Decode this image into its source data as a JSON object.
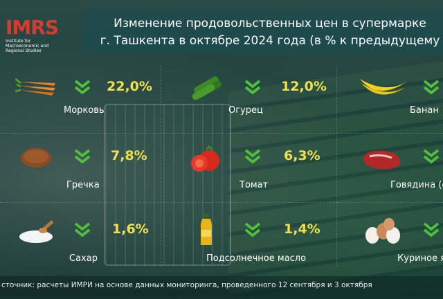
{
  "logo": {
    "mark": "IMRS",
    "sub": "Institute for Macroeconomic and Regional Studies"
  },
  "title_lines": [
    "Изменение продовольственных цен в супермарке",
    "г. Ташкента в октябре 2024 года (в % к предыдущему"
  ],
  "footer": "сточник: расчеты ИМРИ на основе данных мониторинга, проведенного 12 сентября и 3 октября",
  "colors": {
    "value": "#f0e14a",
    "arrow": "#4fbf3c",
    "logo": "#d83a2e",
    "title_bg": "#1e4b4e"
  },
  "chart_data": {
    "type": "table",
    "title": "Изменение продовольственных цен в супермаркетах г. Ташкента в октябре 2024 года (в % к предыдущему месяцу)",
    "direction": "decrease",
    "items": [
      {
        "name": "Морковь",
        "value_label": "22,0%",
        "value": 22.0,
        "icon": "carrot-icon"
      },
      {
        "name": "Огурец",
        "value_label": "12,0%",
        "value": 12.0,
        "icon": "cucumber-icon"
      },
      {
        "name": "Банан",
        "value_label": "",
        "value": null,
        "icon": "banana-icon"
      },
      {
        "name": "Гречка",
        "value_label": "7,8%",
        "value": 7.8,
        "icon": "buckwheat-icon"
      },
      {
        "name": "Томат",
        "value_label": "6,3%",
        "value": 6.3,
        "icon": "tomato-icon"
      },
      {
        "name": "Говядина (ф",
        "value_label": "",
        "value": null,
        "icon": "beef-icon"
      },
      {
        "name": "Сахар",
        "value_label": "1,6%",
        "value": 1.6,
        "icon": "sugar-icon"
      },
      {
        "name": "Подсолнечное масло",
        "value_label": "1,4%",
        "value": 1.4,
        "icon": "oil-bottle-icon"
      },
      {
        "name": "Куриное я",
        "value_label": "",
        "value": null,
        "icon": "eggs-icon"
      }
    ]
  }
}
